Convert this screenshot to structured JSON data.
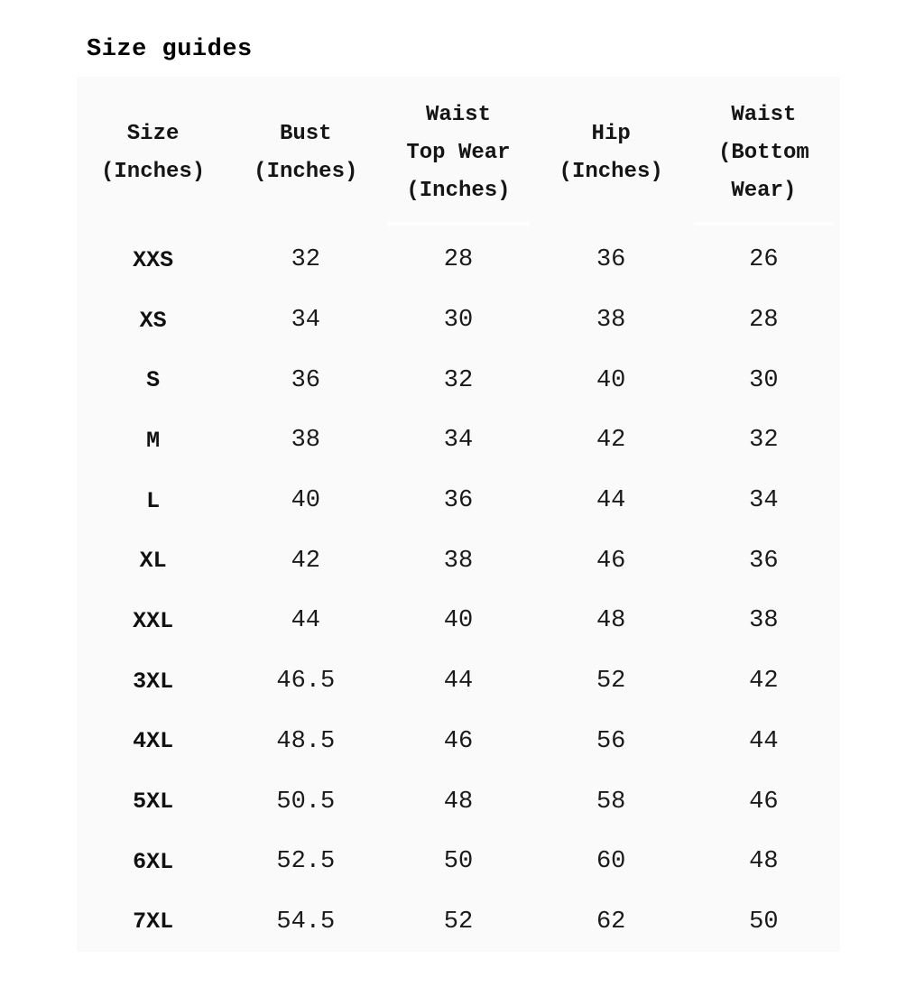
{
  "title": "Size guides",
  "colors": {
    "table_background": "#fafafa",
    "text": "#1a1a1a",
    "header_separator": "#ffffff"
  },
  "table": {
    "headers": [
      "Size\n(Inches)",
      "Bust\n(Inches)",
      "Waist\nTop Wear\n(Inches)",
      "Hip\n(Inches)",
      "Waist\n(Bottom\nWear)"
    ],
    "rows": [
      [
        "XXS",
        "32",
        "28",
        "36",
        "26"
      ],
      [
        "XS",
        "34",
        "30",
        "38",
        "28"
      ],
      [
        "S",
        "36",
        "32",
        "40",
        "30"
      ],
      [
        "M",
        "38",
        "34",
        "42",
        "32"
      ],
      [
        "L",
        "40",
        "36",
        "44",
        "34"
      ],
      [
        "XL",
        "42",
        "38",
        "46",
        "36"
      ],
      [
        "XXL",
        "44",
        "40",
        "48",
        "38"
      ],
      [
        "3XL",
        "46.5",
        "44",
        "52",
        "42"
      ],
      [
        "4XL",
        "48.5",
        "46",
        "56",
        "44"
      ],
      [
        "5XL",
        "50.5",
        "48",
        "58",
        "46"
      ],
      [
        "6XL",
        "52.5",
        "50",
        "60",
        "48"
      ],
      [
        "7XL",
        "54.5",
        "52",
        "62",
        "50"
      ]
    ]
  }
}
